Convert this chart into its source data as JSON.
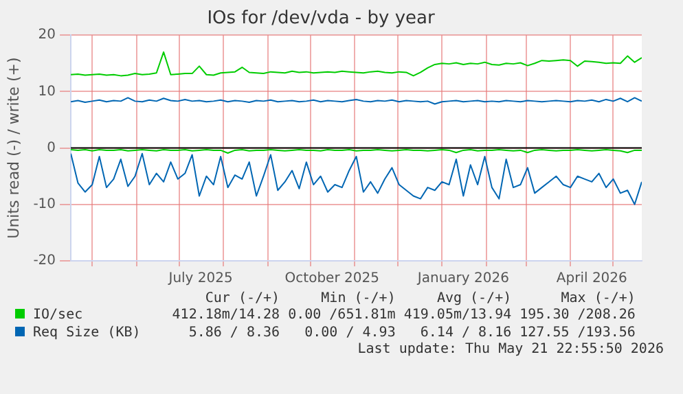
{
  "chart_data": {
    "type": "line",
    "title": "IOs for /dev/vda - by year",
    "ylabel": "Units read (-) / write (+)",
    "x": [
      "2025-04-16",
      "2025-04-21",
      "2025-04-26",
      "2025-05-01",
      "2025-05-06",
      "2025-05-11",
      "2025-05-16",
      "2025-05-21",
      "2025-05-26",
      "2025-05-31",
      "2025-06-05",
      "2025-06-10",
      "2025-06-15",
      "2025-06-20",
      "2025-06-25",
      "2025-06-30",
      "2025-07-05",
      "2025-07-10",
      "2025-07-15",
      "2025-07-20",
      "2025-07-25",
      "2025-07-30",
      "2025-08-04",
      "2025-08-09",
      "2025-08-14",
      "2025-08-19",
      "2025-08-24",
      "2025-08-29",
      "2025-09-03",
      "2025-09-08",
      "2025-09-13",
      "2025-09-18",
      "2025-09-23",
      "2025-09-28",
      "2025-10-03",
      "2025-10-08",
      "2025-10-13",
      "2025-10-18",
      "2025-10-23",
      "2025-10-28",
      "2025-11-02",
      "2025-11-07",
      "2025-11-12",
      "2025-11-17",
      "2025-11-22",
      "2025-11-27",
      "2025-12-02",
      "2025-12-07",
      "2025-12-12",
      "2025-12-17",
      "2025-12-22",
      "2025-12-27",
      "2026-01-01",
      "2026-01-06",
      "2026-01-11",
      "2026-01-16",
      "2026-01-21",
      "2026-01-26",
      "2026-01-31",
      "2026-02-05",
      "2026-02-10",
      "2026-02-15",
      "2026-02-20",
      "2026-02-25",
      "2026-03-02",
      "2026-03-07",
      "2026-03-12",
      "2026-03-17",
      "2026-03-22",
      "2026-03-27",
      "2026-04-01",
      "2026-04-06",
      "2026-04-11",
      "2026-04-16",
      "2026-04-21",
      "2026-04-26",
      "2026-05-01",
      "2026-05-06",
      "2026-05-11",
      "2026-05-16",
      "2026-05-21"
    ],
    "series": [
      {
        "name": "IO/sec",
        "color": "#00cc00",
        "values": [
          13.0,
          13.1,
          12.9,
          13.0,
          13.1,
          12.9,
          13.0,
          12.8,
          12.9,
          13.2,
          13.0,
          13.1,
          13.3,
          17.0,
          13.0,
          13.1,
          13.2,
          13.2,
          14.5,
          13.0,
          12.9,
          13.3,
          13.4,
          13.5,
          14.3,
          13.4,
          13.3,
          13.2,
          13.5,
          13.4,
          13.3,
          13.6,
          13.4,
          13.5,
          13.3,
          13.4,
          13.5,
          13.4,
          13.6,
          13.5,
          13.4,
          13.3,
          13.5,
          13.6,
          13.4,
          13.3,
          13.5,
          13.4,
          12.8,
          13.4,
          14.2,
          14.8,
          15.0,
          14.9,
          15.1,
          14.8,
          15.0,
          14.9,
          15.2,
          14.8,
          14.7,
          15.0,
          14.9,
          15.1,
          14.6,
          15.0,
          15.5,
          15.4,
          15.5,
          15.6,
          15.5,
          14.5,
          15.4,
          15.3,
          15.2,
          15.0,
          15.1,
          15.0,
          16.3,
          15.2,
          16.0
        ]
      },
      {
        "color": "#00cc00",
        "values": [
          -0.3,
          -0.4,
          -0.3,
          -0.5,
          -0.3,
          -0.4,
          -0.4,
          -0.3,
          -0.5,
          -0.4,
          -0.3,
          -0.4,
          -0.5,
          -0.3,
          -0.4,
          -0.4,
          -0.3,
          -0.5,
          -0.4,
          -0.3,
          -0.4,
          -0.4,
          -0.9,
          -0.4,
          -0.3,
          -0.5,
          -0.4,
          -0.4,
          -0.3,
          -0.4,
          -0.5,
          -0.4,
          -0.3,
          -0.4,
          -0.4,
          -0.5,
          -0.3,
          -0.4,
          -0.4,
          -0.3,
          -0.5,
          -0.4,
          -0.4,
          -0.3,
          -0.4,
          -0.5,
          -0.4,
          -0.3,
          -0.4,
          -0.4,
          -0.5,
          -0.4,
          -0.3,
          -0.4,
          -0.8,
          -0.4,
          -0.3,
          -0.5,
          -0.4,
          -0.4,
          -0.3,
          -0.4,
          -0.5,
          -0.4,
          -0.8,
          -0.4,
          -0.3,
          -0.4,
          -0.5,
          -0.4,
          -0.4,
          -0.3,
          -0.4,
          -0.5,
          -0.4,
          -0.3,
          -0.4,
          -0.5,
          -0.8,
          -0.4,
          -0.4
        ]
      },
      {
        "name": "Req Size (KB)",
        "color": "#0066b3",
        "values": [
          8.2,
          8.4,
          8.1,
          8.3,
          8.5,
          8.2,
          8.4,
          8.3,
          8.9,
          8.3,
          8.2,
          8.5,
          8.3,
          8.8,
          8.4,
          8.3,
          8.6,
          8.3,
          8.4,
          8.2,
          8.3,
          8.5,
          8.2,
          8.4,
          8.3,
          8.1,
          8.4,
          8.3,
          8.5,
          8.2,
          8.3,
          8.4,
          8.2,
          8.3,
          8.5,
          8.2,
          8.4,
          8.3,
          8.2,
          8.4,
          8.6,
          8.3,
          8.2,
          8.4,
          8.3,
          8.5,
          8.2,
          8.4,
          8.3,
          8.2,
          8.3,
          7.8,
          8.2,
          8.3,
          8.4,
          8.2,
          8.3,
          8.4,
          8.2,
          8.3,
          8.2,
          8.4,
          8.3,
          8.2,
          8.4,
          8.3,
          8.2,
          8.3,
          8.4,
          8.3,
          8.2,
          8.4,
          8.3,
          8.5,
          8.2,
          8.6,
          8.3,
          8.8,
          8.2,
          8.9,
          8.3
        ]
      },
      {
        "color": "#0066b3",
        "values": [
          -1.0,
          -6.2,
          -7.8,
          -6.5,
          -1.5,
          -7.0,
          -5.5,
          -2.0,
          -6.8,
          -5.0,
          -1.0,
          -6.5,
          -4.5,
          -6.0,
          -2.5,
          -5.5,
          -4.5,
          -1.2,
          -8.5,
          -5.0,
          -6.5,
          -1.5,
          -7.0,
          -4.8,
          -5.5,
          -2.5,
          -8.5,
          -5.0,
          -1.2,
          -7.5,
          -6.0,
          -4.0,
          -7.2,
          -2.5,
          -6.5,
          -5.0,
          -7.8,
          -6.5,
          -7.0,
          -4.0,
          -1.5,
          -7.8,
          -6.0,
          -8.0,
          -5.5,
          -3.5,
          -6.5,
          -7.5,
          -8.5,
          -9.0,
          -7.0,
          -7.5,
          -6.0,
          -6.5,
          -2.0,
          -8.5,
          -3.0,
          -6.5,
          -1.5,
          -7.0,
          -9.0,
          -2.0,
          -7.0,
          -6.5,
          -3.5,
          -8.0,
          -7.0,
          -6.0,
          -5.0,
          -6.5,
          -7.0,
          -5.0,
          -5.5,
          -6.0,
          -4.5,
          -7.0,
          -5.5,
          -8.0,
          -7.5,
          -10.0,
          -6.0
        ]
      }
    ],
    "xlim": [
      "2025-04-16",
      "2026-05-21"
    ],
    "xticks": [
      {
        "value": "2025-05-01",
        "label": null
      },
      {
        "value": "2025-06-01",
        "label": null
      },
      {
        "value": "2025-07-01",
        "label": null
      },
      {
        "value": "2025-07-16",
        "label": "July 2025"
      },
      {
        "value": "2025-08-01",
        "label": null
      },
      {
        "value": "2025-09-01",
        "label": null
      },
      {
        "value": "2025-10-01",
        "label": null
      },
      {
        "value": "2025-10-16",
        "label": "October 2025"
      },
      {
        "value": "2025-11-01",
        "label": null
      },
      {
        "value": "2025-12-01",
        "label": null
      },
      {
        "value": "2026-01-01",
        "label": null
      },
      {
        "value": "2026-01-16",
        "label": "January 2026"
      },
      {
        "value": "2026-02-01",
        "label": null
      },
      {
        "value": "2026-03-01",
        "label": null
      },
      {
        "value": "2026-04-01",
        "label": null
      },
      {
        "value": "2026-04-16",
        "label": "April 2026"
      },
      {
        "value": "2026-05-01",
        "label": null
      }
    ],
    "ylim": [
      -20,
      20
    ],
    "yticks": [
      -20,
      -10,
      0,
      10,
      20
    ],
    "grid": true,
    "legend": "bottom",
    "marker": "none",
    "line_style": "solid",
    "ref_lines": [
      {
        "axis": "y",
        "value": 0,
        "color": "#000000"
      }
    ],
    "annotations": [
      "Cur (-/+)",
      "Min (-/+)",
      "Avg (-/+)",
      "Max (-/+)",
      "412.18m/14.28",
      "0.00 /651.81m",
      "419.05m/13.94",
      "195.30 /208.26",
      "5.86 / 8.36",
      "0.00 / 4.93",
      "6.14 / 8.16",
      "127.55 /193.56",
      "Last update: Thu May 21 22:55:50 2026"
    ]
  }
}
